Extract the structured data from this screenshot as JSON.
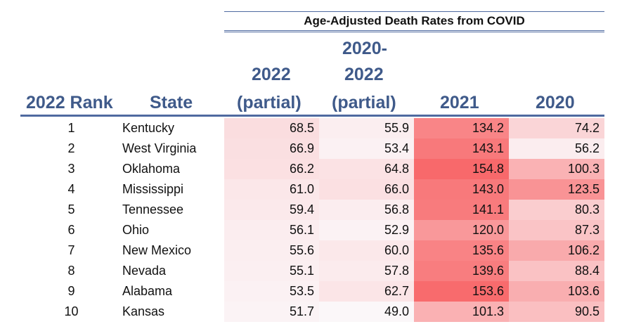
{
  "table": {
    "super_header": "Age-Adjusted Death Rates from COVID",
    "headers": {
      "rank": "2022 Rank",
      "state": "State",
      "partial2022_line1": "2022",
      "partial2022_line2": "(partial)",
      "range_line1": "2020-",
      "range_line2": "2022",
      "range_line3": "(partial)",
      "y2021": "2021",
      "y2020": "2020"
    },
    "rows": [
      {
        "rank": "1",
        "state": "Kentucky",
        "p2022": "68.5",
        "p20202022": "55.9",
        "y2021": "134.2",
        "y2020": "74.2"
      },
      {
        "rank": "2",
        "state": "West Virginia",
        "p2022": "66.9",
        "p20202022": "53.4",
        "y2021": "143.1",
        "y2020": "56.2"
      },
      {
        "rank": "3",
        "state": "Oklahoma",
        "p2022": "66.2",
        "p20202022": "64.8",
        "y2021": "154.8",
        "y2020": "100.3"
      },
      {
        "rank": "4",
        "state": "Mississippi",
        "p2022": "61.0",
        "p20202022": "66.0",
        "y2021": "143.0",
        "y2020": "123.5"
      },
      {
        "rank": "5",
        "state": "Tennessee",
        "p2022": "59.4",
        "p20202022": "56.8",
        "y2021": "141.1",
        "y2020": "80.3"
      },
      {
        "rank": "6",
        "state": "Ohio",
        "p2022": "56.1",
        "p20202022": "52.9",
        "y2021": "120.0",
        "y2020": "87.3"
      },
      {
        "rank": "7",
        "state": "New Mexico",
        "p2022": "55.6",
        "p20202022": "60.0",
        "y2021": "135.6",
        "y2020": "106.2"
      },
      {
        "rank": "8",
        "state": "Nevada",
        "p2022": "55.1",
        "p20202022": "57.8",
        "y2021": "139.6",
        "y2020": "88.4"
      },
      {
        "rank": "9",
        "state": "Alabama",
        "p2022": "53.5",
        "p20202022": "62.7",
        "y2021": "153.6",
        "y2020": "103.6"
      },
      {
        "rank": "10",
        "state": "Kansas",
        "p2022": "51.7",
        "p20202022": "49.0",
        "y2021": "101.3",
        "y2020": "90.5"
      }
    ]
  },
  "colors": {
    "header_text": "#3f5a8a",
    "rule": "#4f6aa0",
    "heat_low": "#fbf7f9",
    "heat_high": "#f8696b"
  }
}
